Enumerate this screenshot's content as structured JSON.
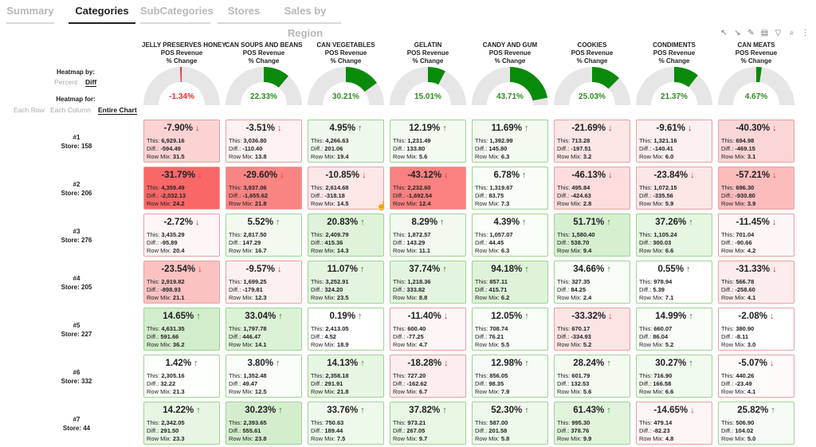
{
  "tabs": [
    {
      "label": "Summary",
      "active": false
    },
    {
      "label": "Categories",
      "active": true
    },
    {
      "label": "SubCategories",
      "active": false
    },
    {
      "label": "Stores",
      "active": false
    },
    {
      "label": "Sales by Region",
      "active": false
    }
  ],
  "toolbar": [
    {
      "icon": "expand-icon",
      "glyph": "↖"
    },
    {
      "icon": "collapse-icon",
      "glyph": "↘"
    },
    {
      "icon": "pencil-icon",
      "glyph": "✎"
    },
    {
      "icon": "table-icon",
      "glyph": "▤"
    },
    {
      "icon": "filter-icon",
      "glyph": "▽"
    },
    {
      "icon": "search-icon",
      "glyph": "⌕"
    },
    {
      "icon": "more-icon",
      "glyph": "⋮"
    }
  ],
  "heatmap_by": {
    "label": "Heatmap by:",
    "options": [
      "Percent",
      "Diff"
    ],
    "selected": "Diff"
  },
  "heatmap_for": {
    "label": "Heatmap for:",
    "options": [
      "Each Row",
      "Each Column",
      "Entire Chart"
    ],
    "selected": "Entire Chart"
  },
  "measure_label": "POS Revenue",
  "change_label": "% Change",
  "columns": [
    {
      "name": "JELLY PRESERVES HONEY",
      "pct": "-1.34%",
      "value": -1.34
    },
    {
      "name": "CAN SOUPS AND BEANS",
      "pct": "22.33%",
      "value": 22.33
    },
    {
      "name": "CAN VEGETABLES",
      "pct": "30.21%",
      "value": 30.21
    },
    {
      "name": "GELATIN",
      "pct": "15.01%",
      "value": 15.01
    },
    {
      "name": "CANDY AND GUM",
      "pct": "43.71%",
      "value": 43.71
    },
    {
      "name": "COOKIES",
      "pct": "25.03%",
      "value": 25.03
    },
    {
      "name": "CONDIMENTS",
      "pct": "21.37%",
      "value": 21.37
    },
    {
      "name": "CAN MEATS",
      "pct": "4.67%",
      "value": 4.67
    }
  ],
  "labels": {
    "this": "This: ",
    "diff": "Diff.: ",
    "mix": "Row Mix: "
  },
  "colors": {
    "positive": "#2e8b1f",
    "negative": "#e52d2d",
    "gauge_bg": "#e6e6e6",
    "gauge_pos": "#0a8a0a",
    "gauge_neg": "#e53030"
  },
  "rows": [
    {
      "rank": "#1",
      "store": "Store: 158",
      "cells": [
        {
          "pct": "-7.90%",
          "this": "6,929.16",
          "diff": "-594.49",
          "mix": "31.5",
          "dir": "down",
          "shade": "#fbd3d3"
        },
        {
          "pct": "-3.51%",
          "this": "3,036.80",
          "diff": "-110.40",
          "mix": "13.8",
          "dir": "down",
          "shade": "#fdf1f1"
        },
        {
          "pct": "4.95%",
          "this": "4,266.63",
          "diff": "201.06",
          "mix": "19.4",
          "dir": "up",
          "shade": "#eef8ec"
        },
        {
          "pct": "12.19%",
          "this": "1,231.49",
          "diff": "133.80",
          "mix": "5.6",
          "dir": "up",
          "shade": "#f3fbf1"
        },
        {
          "pct": "11.69%",
          "this": "1,392.99",
          "diff": "145.80",
          "mix": "6.3",
          "dir": "up",
          "shade": "#f3fbf1"
        },
        {
          "pct": "-21.69%",
          "this": "713.28",
          "diff": "-197.51",
          "mix": "3.2",
          "dir": "down",
          "shade": "#fce6e6"
        },
        {
          "pct": "-9.61%",
          "this": "1,321.16",
          "diff": "-140.41",
          "mix": "6.0",
          "dir": "down",
          "shade": "#fdf0f0"
        },
        {
          "pct": "-40.30%",
          "this": "694.98",
          "diff": "-469.15",
          "mix": "3.1",
          "dir": "down",
          "shade": "#fbd6d6"
        }
      ]
    },
    {
      "rank": "#2",
      "store": "Store: 206",
      "cells": [
        {
          "pct": "-31.79%",
          "this": "4,359.49",
          "diff": "-2,032.13",
          "mix": "24.2",
          "dir": "down",
          "shade": "#f96767"
        },
        {
          "pct": "-29.60%",
          "this": "3,937.06",
          "diff": "-1,655.62",
          "mix": "21.8",
          "dir": "down",
          "shade": "#f98484"
        },
        {
          "pct": "-10.85%",
          "this": "2,614.68",
          "diff": "-318.18",
          "mix": "14.5",
          "dir": "down",
          "shade": "#fde7e7"
        },
        {
          "pct": "-43.12%",
          "this": "2,232.60",
          "diff": "-1,692.54",
          "mix": "12.4",
          "dir": "down",
          "shade": "#f98181"
        },
        {
          "pct": "6.78%",
          "this": "1,319.67",
          "diff": "83.75",
          "mix": "7.3",
          "dir": "up",
          "shade": "#f8fdf7"
        },
        {
          "pct": "-46.13%",
          "this": "495.84",
          "diff": "-424.63",
          "mix": "2.8",
          "dir": "down",
          "shade": "#fcdcdc"
        },
        {
          "pct": "-23.84%",
          "this": "1,072.15",
          "diff": "-335.56",
          "mix": "5.9",
          "dir": "down",
          "shade": "#fde6e6"
        },
        {
          "pct": "-57.21%",
          "this": "696.30",
          "diff": "-930.80",
          "mix": "3.9",
          "dir": "down",
          "shade": "#fbbcbc"
        }
      ]
    },
    {
      "rank": "#3",
      "store": "Store: 276",
      "cells": [
        {
          "pct": "-2.72%",
          "this": "3,435.29",
          "diff": "-95.89",
          "mix": "20.4",
          "dir": "down",
          "shade": "#fef6f6"
        },
        {
          "pct": "5.52%",
          "this": "2,817.50",
          "diff": "147.29",
          "mix": "16.7",
          "dir": "up",
          "shade": "#f2faf0"
        },
        {
          "pct": "20.83%",
          "this": "2,409.79",
          "diff": "415.36",
          "mix": "14.3",
          "dir": "up",
          "shade": "#def3d9"
        },
        {
          "pct": "8.29%",
          "this": "1,872.57",
          "diff": "143.29",
          "mix": "11.1",
          "dir": "up",
          "shade": "#f2faf0"
        },
        {
          "pct": "4.39%",
          "this": "1,057.07",
          "diff": "44.45",
          "mix": "6.3",
          "dir": "up",
          "shade": "#fafef9"
        },
        {
          "pct": "51.71%",
          "this": "1,580.40",
          "diff": "538.70",
          "mix": "9.4",
          "dir": "up",
          "shade": "#d5efcf"
        },
        {
          "pct": "37.26%",
          "this": "1,105.24",
          "diff": "300.03",
          "mix": "6.6",
          "dir": "up",
          "shade": "#e5f6e1"
        },
        {
          "pct": "-11.45%",
          "this": "701.04",
          "diff": "-90.66",
          "mix": "4.2",
          "dir": "down",
          "shade": "#fef6f6"
        }
      ]
    },
    {
      "rank": "#4",
      "store": "Store: 205",
      "cells": [
        {
          "pct": "-23.54%",
          "this": "2,919.82",
          "diff": "-898.93",
          "mix": "21.1",
          "dir": "down",
          "shade": "#fbc2c2"
        },
        {
          "pct": "-9.57%",
          "this": "1,699.25",
          "diff": "-179.81",
          "mix": "12.3",
          "dir": "down",
          "shade": "#fdf0f0"
        },
        {
          "pct": "11.07%",
          "this": "3,252.91",
          "diff": "324.20",
          "mix": "23.5",
          "dir": "up",
          "shade": "#e3f5df"
        },
        {
          "pct": "37.74%",
          "this": "1,218.36",
          "diff": "333.82",
          "mix": "8.8",
          "dir": "up",
          "shade": "#e3f5df"
        },
        {
          "pct": "94.18%",
          "this": "857.11",
          "diff": "415.71",
          "mix": "6.2",
          "dir": "up",
          "shade": "#def3d9"
        },
        {
          "pct": "34.66%",
          "this": "327.35",
          "diff": "84.25",
          "mix": "2.4",
          "dir": "up",
          "shade": "#f8fdf7"
        },
        {
          "pct": "0.55%",
          "this": "978.94",
          "diff": "5.39",
          "mix": "7.1",
          "dir": "up",
          "shade": "#ffffff"
        },
        {
          "pct": "-31.33%",
          "this": "566.78",
          "diff": "-258.60",
          "mix": "4.1",
          "dir": "down",
          "shade": "#fdecec"
        }
      ]
    },
    {
      "rank": "#5",
      "store": "Store: 227",
      "cells": [
        {
          "pct": "14.65%",
          "this": "4,631.35",
          "diff": "591.66",
          "mix": "36.2",
          "dir": "up",
          "shade": "#d2edcb"
        },
        {
          "pct": "33.04%",
          "this": "1,797.78",
          "diff": "446.47",
          "mix": "14.1",
          "dir": "up",
          "shade": "#dcf2d6"
        },
        {
          "pct": "0.19%",
          "this": "2,413.05",
          "diff": "4.52",
          "mix": "18.9",
          "dir": "up",
          "shade": "#ffffff"
        },
        {
          "pct": "-11.40%",
          "this": "600.40",
          "diff": "-77.25",
          "mix": "4.7",
          "dir": "down",
          "shade": "#fef6f6"
        },
        {
          "pct": "12.05%",
          "this": "708.74",
          "diff": "76.21",
          "mix": "5.5",
          "dir": "up",
          "shade": "#f8fdf7"
        },
        {
          "pct": "-33.32%",
          "this": "670.17",
          "diff": "-334.93",
          "mix": "5.2",
          "dir": "down",
          "shade": "#fce4e4"
        },
        {
          "pct": "14.99%",
          "this": "660.07",
          "diff": "86.04",
          "mix": "5.2",
          "dir": "up",
          "shade": "#f8fdf7"
        },
        {
          "pct": "-2.08%",
          "this": "380.90",
          "diff": "-8.11",
          "mix": "3.0",
          "dir": "down",
          "shade": "#ffffff"
        }
      ]
    },
    {
      "rank": "#6",
      "store": "Store: 332",
      "cells": [
        {
          "pct": "1.42%",
          "this": "2,305.16",
          "diff": "32.22",
          "mix": "21.3",
          "dir": "up",
          "shade": "#fdfffd"
        },
        {
          "pct": "3.80%",
          "this": "1,352.48",
          "diff": "49.47",
          "mix": "12.5",
          "dir": "up",
          "shade": "#fafef9"
        },
        {
          "pct": "14.13%",
          "this": "2,358.18",
          "diff": "291.91",
          "mix": "21.8",
          "dir": "up",
          "shade": "#e6f6e2"
        },
        {
          "pct": "-18.28%",
          "this": "727.20",
          "diff": "-162.62",
          "mix": "6.7",
          "dir": "down",
          "shade": "#fdeeee"
        },
        {
          "pct": "12.98%",
          "this": "856.05",
          "diff": "98.35",
          "mix": "7.9",
          "dir": "up",
          "shade": "#f6fcf5"
        },
        {
          "pct": "28.24%",
          "this": "601.79",
          "diff": "132.53",
          "mix": "5.6",
          "dir": "up",
          "shade": "#f3fbf1"
        },
        {
          "pct": "30.27%",
          "this": "716.90",
          "diff": "166.58",
          "mix": "6.6",
          "dir": "up",
          "shade": "#f0faee"
        },
        {
          "pct": "-5.07%",
          "this": "440.26",
          "diff": "-23.49",
          "mix": "4.1",
          "dir": "down",
          "shade": "#fffbfb"
        }
      ]
    },
    {
      "rank": "#7",
      "store": "Store: 44",
      "cells": [
        {
          "pct": "14.22%",
          "this": "2,342.05",
          "diff": "291.50",
          "mix": "23.3",
          "dir": "up",
          "shade": "#e6f6e2"
        },
        {
          "pct": "30.23%",
          "this": "2,393.65",
          "diff": "555.61",
          "mix": "23.8",
          "dir": "up",
          "shade": "#d4eecd"
        },
        {
          "pct": "33.76%",
          "this": "750.63",
          "diff": "189.44",
          "mix": "7.5",
          "dir": "up",
          "shade": "#eef9ec"
        },
        {
          "pct": "37.82%",
          "this": "973.21",
          "diff": "267.05",
          "mix": "9.7",
          "dir": "up",
          "shade": "#e8f7e4"
        },
        {
          "pct": "52.30%",
          "this": "587.00",
          "diff": "201.58",
          "mix": "5.8",
          "dir": "up",
          "shade": "#eef9ec"
        },
        {
          "pct": "61.43%",
          "this": "995.30",
          "diff": "378.76",
          "mix": "9.9",
          "dir": "up",
          "shade": "#e0f4db"
        },
        {
          "pct": "-14.65%",
          "this": "479.14",
          "diff": "-82.23",
          "mix": "4.8",
          "dir": "down",
          "shade": "#fef6f6"
        },
        {
          "pct": "25.82%",
          "this": "506.90",
          "diff": "104.02",
          "mix": "5.0",
          "dir": "up",
          "shade": "#f6fcf5"
        }
      ]
    }
  ]
}
